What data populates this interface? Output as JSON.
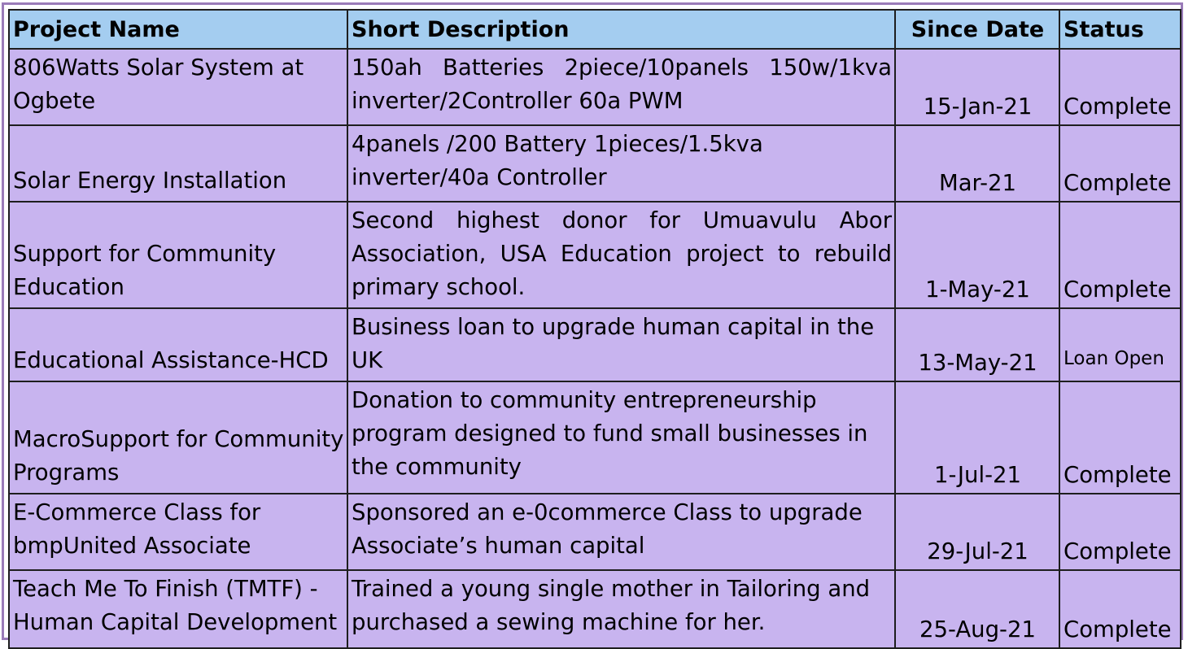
{
  "table": {
    "headers": {
      "name": "Project Name",
      "description": "Short Description",
      "date": "Since Date",
      "status": "Status"
    },
    "rows": [
      {
        "name": "806Watts Solar System at Ogbete",
        "description": "150ah Batteries 2piece/10panels 150w/1kva inverter/2Controller 60a PWM",
        "date": "15-Jan-21",
        "status": "Complete"
      },
      {
        "name": "Solar Energy Installation",
        "description": "4panels /200 Battery 1pieces/1.5kva inverter/40a Controller",
        "date": "Mar-21",
        "status": "Complete"
      },
      {
        "name": "Support for Community Education",
        "description": "Second highest donor for Umuavulu Abor Association, USA Education project to rebuild primary school.",
        "date": "1-May-21",
        "status": "Complete"
      },
      {
        "name": "Educational Assistance-HCD",
        "description": "Business loan to upgrade human capital in the UK",
        "date": "13-May-21",
        "status": "Loan Open"
      },
      {
        "name": "MacroSupport for Community Programs",
        "description": "Donation to community entrepreneurship program designed to fund small businesses in the community",
        "date": "1-Jul-21",
        "status": "Complete"
      },
      {
        "name": "E-Commerce Class for bmpUnited Associate",
        "description": "Sponsored an e-0commerce Class to upgrade Associate’s human capital",
        "date": "29-Jul-21",
        "status": "Complete"
      },
      {
        "name": "Teach Me To Finish (TMTF) - Human Capital Development",
        "description": "Trained a young single mother in Tailoring and purchased a sewing machine for her.",
        "date": "25-Aug-21",
        "status": "Complete"
      }
    ]
  },
  "colors": {
    "header_bg": "#a4cdf0",
    "row_bg": "#c8b4ef",
    "frame_border": "#9a7bb8"
  }
}
